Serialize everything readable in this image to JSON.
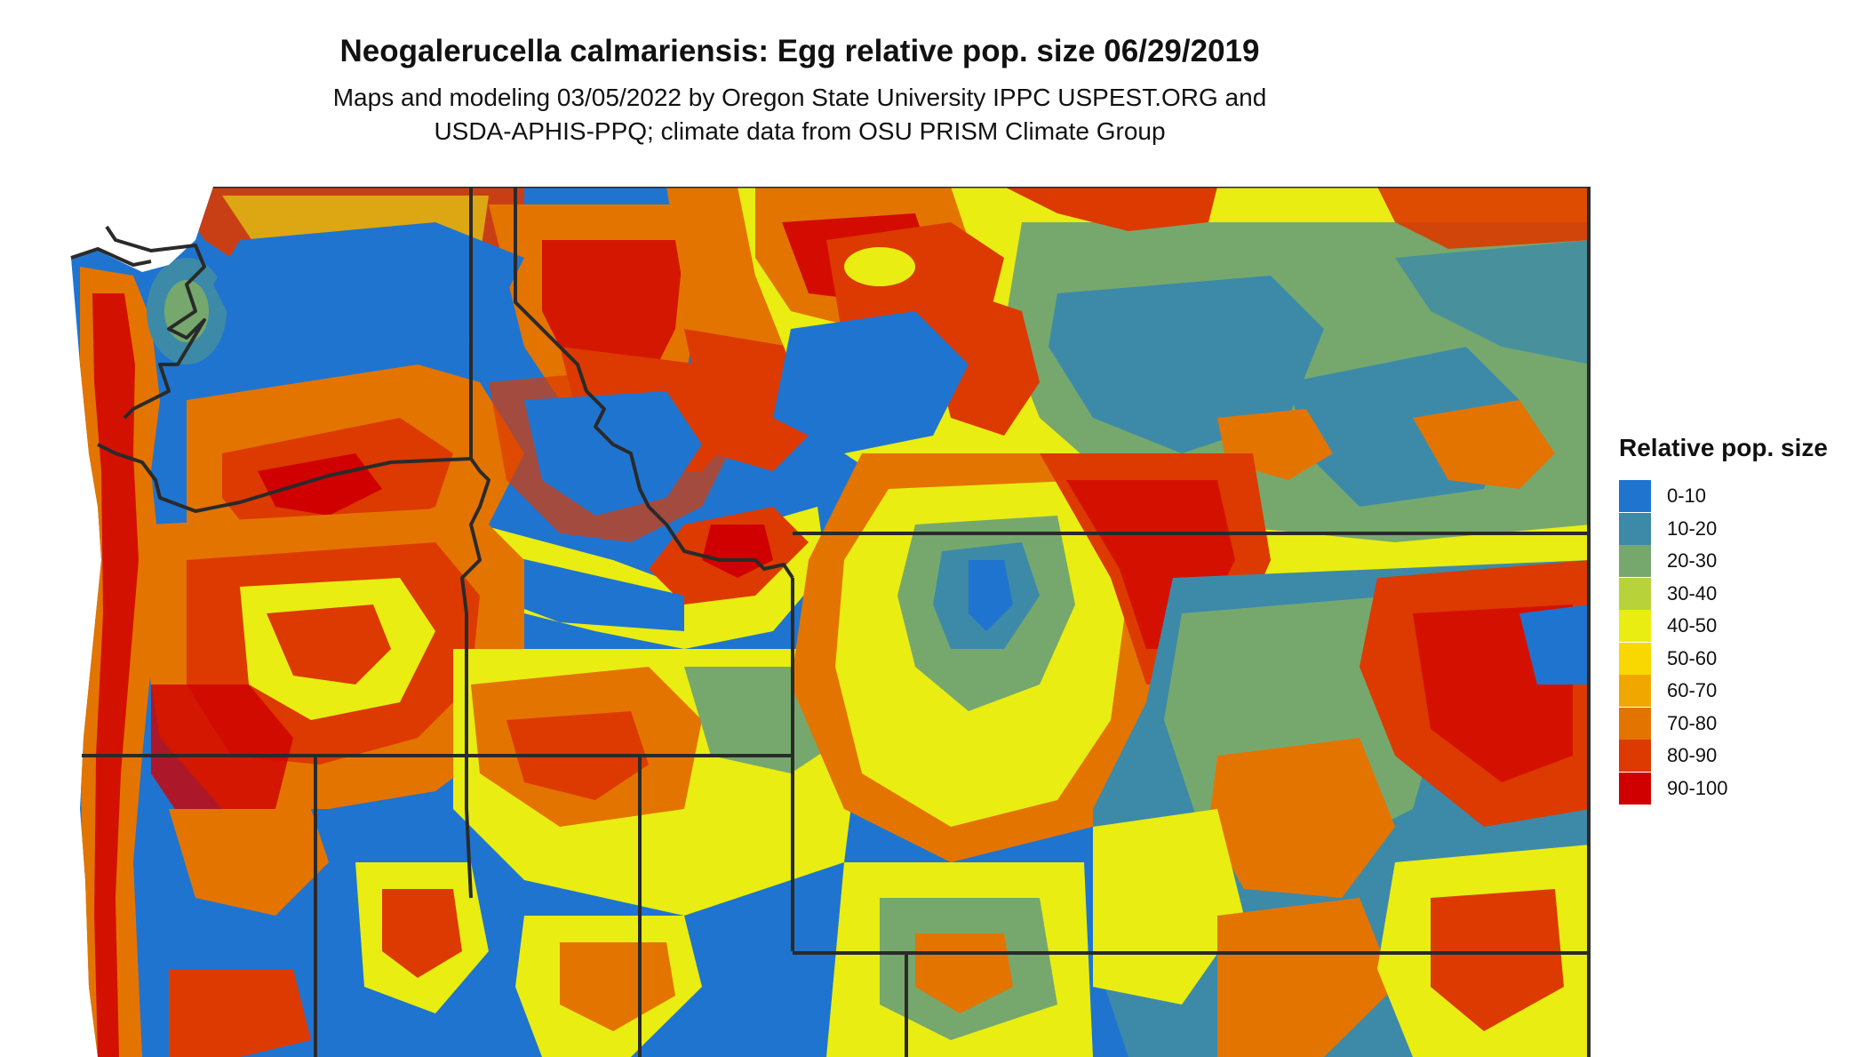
{
  "title": "Neogalerucella calmariensis: Egg relative pop. size 06/29/2019",
  "subtitle_line1": "Maps and modeling 03/05/2022 by Oregon State University IPPC USPEST.ORG and",
  "subtitle_line2": "USDA-APHIS-PPQ; climate data from OSU PRISM Climate Group",
  "legend": {
    "title": "Relative pop. size",
    "items": [
      {
        "label": "0-10",
        "color": "#1f74d0"
      },
      {
        "label": "10-20",
        "color": "#3d8aa8"
      },
      {
        "label": "20-30",
        "color": "#76a86e"
      },
      {
        "label": "30-40",
        "color": "#b8d33a"
      },
      {
        "label": "40-50",
        "color": "#e9ed12"
      },
      {
        "label": "50-60",
        "color": "#f8d800"
      },
      {
        "label": "60-70",
        "color": "#f0a800"
      },
      {
        "label": "70-80",
        "color": "#e47400"
      },
      {
        "label": "80-90",
        "color": "#dc3a00"
      },
      {
        "label": "90-100",
        "color": "#d00000"
      }
    ]
  }
}
